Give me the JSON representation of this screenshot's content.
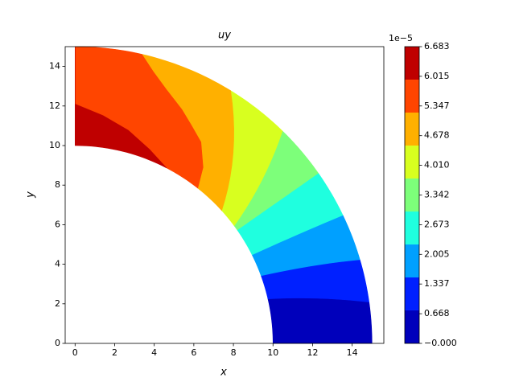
{
  "chart_data": {
    "type": "contour",
    "title": "uy",
    "x_label": "x",
    "y_label": "y",
    "xlim": [
      -0.5,
      15.6
    ],
    "ylim": [
      0,
      15
    ],
    "xticks": [
      0,
      2,
      4,
      6,
      8,
      10,
      12,
      14
    ],
    "yticks": [
      0,
      2,
      4,
      6,
      8,
      10,
      12,
      14
    ],
    "levels": [
      0,
      0.743,
      1.485,
      2.228,
      2.97,
      3.713,
      4.455,
      5.198,
      5.94,
      6.683
    ],
    "colors": [
      "#0000bb",
      "#0020ff",
      "#00a0ff",
      "#1fffdf",
      "#7dff7a",
      "#d8ff1f",
      "#ffb000",
      "#ff4500",
      "#bf0000"
    ],
    "colorbar": {
      "multiplier": "1e−5",
      "lim": [
        0,
        6.683
      ],
      "ticks": [
        {
          "value": 0,
          "label": "−0.000"
        },
        0.668,
        1.337,
        2.005,
        2.673,
        3.342,
        {
          "value": 4.01,
          "label": "4.010"
        },
        4.678,
        5.347,
        6.015,
        6.683
      ]
    }
  }
}
